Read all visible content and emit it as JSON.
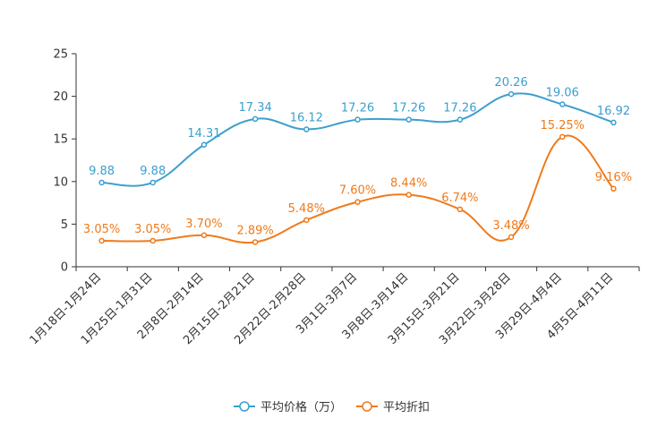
{
  "chart_data": {
    "type": "line",
    "title": "",
    "xlabel": "",
    "ylabel": "",
    "ylim": [
      0,
      25
    ],
    "yticks": [
      0,
      5,
      10,
      15,
      20,
      25
    ],
    "categories": [
      "1月18日-1月24日",
      "1月25日-1月31日",
      "2月8日-2月14日",
      "2月15日-2月21日",
      "2月22日-2月28日",
      "3月1日-3月7日",
      "3月8日-3月14日",
      "3月15日-3月21日",
      "3月22日-3月28日",
      "3月29日-4月4日",
      "4月5日-4月11日"
    ],
    "legend_position": "bottom-center",
    "series": [
      {
        "name": "平均价格（万）",
        "color": "#3c9fce",
        "values": [
          9.88,
          9.88,
          14.31,
          17.34,
          16.12,
          17.26,
          17.26,
          17.26,
          20.26,
          19.06,
          16.92
        ],
        "labels": [
          "9.88",
          "9.88",
          "14.31",
          "17.34",
          "16.12",
          "17.26",
          "17.26",
          "17.26",
          "20.26",
          "19.06",
          "16.92"
        ]
      },
      {
        "name": "平均折扣",
        "color": "#f07a1a",
        "values": [
          3.05,
          3.05,
          3.7,
          2.89,
          5.48,
          7.6,
          8.44,
          6.74,
          3.48,
          15.25,
          9.16
        ],
        "labels": [
          "3.05%",
          "3.05%",
          "3.70%",
          "2.89%",
          "5.48%",
          "7.60%",
          "8.44%",
          "6.74%",
          "3.48%",
          "15.25%",
          "9.16%"
        ]
      }
    ]
  }
}
